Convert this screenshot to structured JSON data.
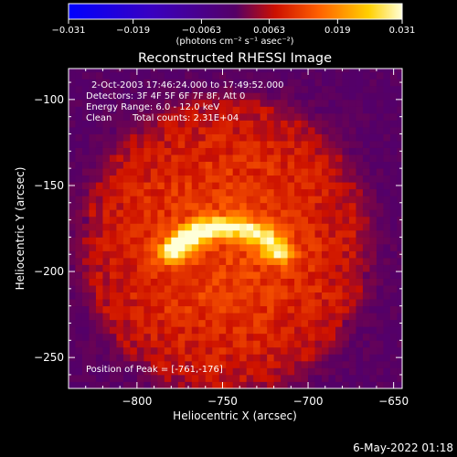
{
  "chart_data": {
    "type": "heatmap",
    "title": "Reconstructed RHESSI Image",
    "xlabel": "Heliocentric X (arcsec)",
    "ylabel": "Heliocentric Y (arcsec)",
    "xlim": [
      -840,
      -645
    ],
    "ylim": [
      -268,
      -82
    ],
    "x_ticks": [
      -800,
      -750,
      -700,
      -650
    ],
    "x_tick_labels": [
      "−800",
      "−750",
      "−700",
      "−650"
    ],
    "y_ticks": [
      -100,
      -150,
      -200,
      -250
    ],
    "y_tick_labels": [
      "−100",
      "−150",
      "−200",
      "−250"
    ],
    "colorbar": {
      "range": [
        -0.031,
        0.031
      ],
      "ticks": [
        -0.031,
        -0.019,
        -0.0063,
        0.0063,
        0.019,
        0.031
      ],
      "tick_labels": [
        "−0.031",
        "−0.019",
        "−0.0063",
        "0.0063",
        "0.019",
        "0.031"
      ],
      "label": "(photons cm⁻² s⁻¹ asec⁻²)",
      "colormap": "hot-on-blue"
    },
    "peak": {
      "x": -761,
      "y": -176
    },
    "source": {
      "shape": "arc",
      "center": [
        -748,
        -196
      ],
      "radius_x": 32,
      "radius_y": 22,
      "arc_angles_deg": [
        20,
        160
      ],
      "peak_value": 0.031,
      "background_value": 0.007
    }
  },
  "annotations": {
    "time_range": "2-Oct-2003 17:46:24.000 to 17:49:52.000",
    "detectors": "Detectors: 3F 4F 5F 6F 7F 8F, Att 0",
    "energy": "Energy Range: 6.0 - 12.0 keV",
    "algorithm": "Clean",
    "counts": "Total counts: 2.31E+04",
    "peak_position": "Position of Peak = [-761,-176]"
  },
  "footer": {
    "date": "6-May-2022 01:18"
  },
  "colors": {
    "background": "#000000",
    "foreground": "#ffffff"
  }
}
